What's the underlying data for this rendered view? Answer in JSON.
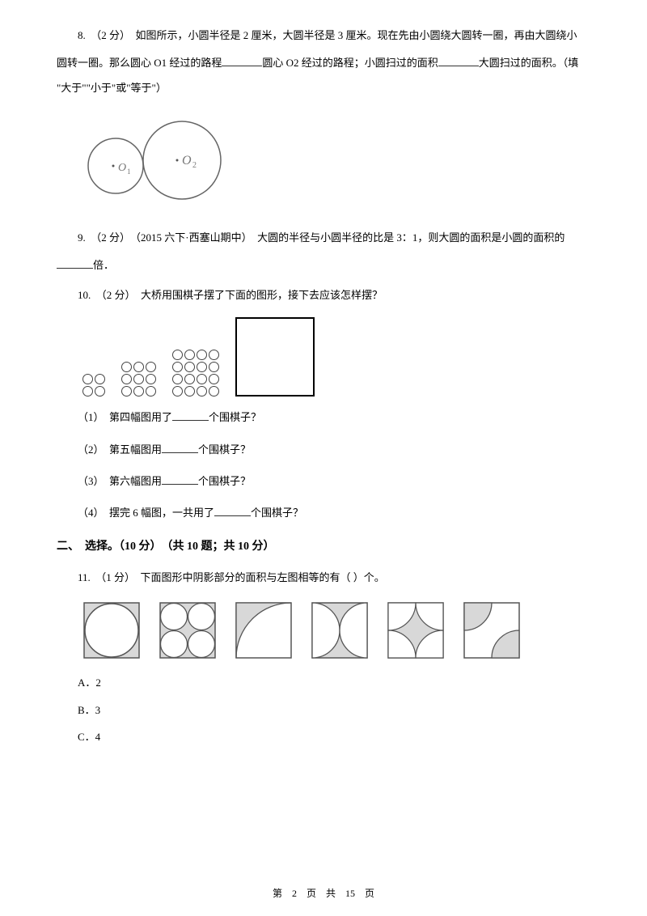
{
  "q8": {
    "prefix": "8.　（2 分）　如图所示，小圆半径是 2 厘米，大圆半径是 3 厘米。现在先由小圆绕大圆转一圈，再由大圆绕小",
    "line2a": "圆转一圈。那么圆心 O1 经过的路程",
    "line2b": "圆心 O2 经过的路程；小圆扫过的面积",
    "line2c": "大圆扫过的面积。（填",
    "line3": "\"大于\"\"小于\"或\"等于\"）",
    "o1_label": "O₁",
    "o2_label": "O₂"
  },
  "q9": {
    "prefix": "9.　（2 分）　（2015 六下·西塞山期中）　大圆的半径与小圆半径的比是 3：1，则大圆的面积是小圆的面积的",
    "suffix": "倍．"
  },
  "q10": {
    "text": "10.　（2 分）　大桥用围棋子摆了下面的图形，接下去应该怎样摆？",
    "sub1a": "（1）　第四幅图用了",
    "sub1b": "个围棋子？",
    "sub2a": "（2）　第五幅图用",
    "sub2b": "个围棋子？",
    "sub3a": "（3）　第六幅图用",
    "sub3b": "个围棋子？",
    "sub4a": "（4）　摆完 6 幅图，一共用了",
    "sub4b": "个围棋子？",
    "groups": [
      {
        "rows": 2,
        "cols": 2
      },
      {
        "rows": 3,
        "cols": 3
      },
      {
        "rows": 4,
        "cols": 4
      }
    ]
  },
  "section2": {
    "header": "二、　选择。（10 分）　（共 10 题；共 10 分）"
  },
  "q11": {
    "text": "11.　（1 分）　下面图形中阴影部分的面积与左图相等的有（      ）个。",
    "optA": "A．2",
    "optB": "B．3",
    "optC": "C．4",
    "shape_stroke": "#555555",
    "shape_fill": "#d8d8d8"
  },
  "footer": "第　2　页　共　15　页"
}
